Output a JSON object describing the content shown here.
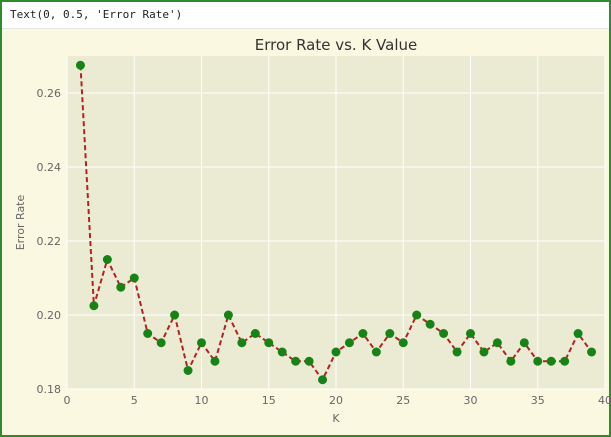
{
  "output_text": "Text(0, 0.5, 'Error Rate')",
  "colors": {
    "plot_background": "#ebebd3",
    "line": "#b22222",
    "marker": "#178317",
    "grid": "#ffffff"
  },
  "chart_data": {
    "type": "line",
    "title": "Error Rate vs. K Value",
    "xlabel": "K",
    "ylabel": "Error Rate",
    "xlim": [
      0,
      40
    ],
    "ylim": [
      0.18,
      0.27
    ],
    "x_ticks": [
      "0",
      "5",
      "10",
      "15",
      "20",
      "25",
      "30",
      "35",
      "40"
    ],
    "y_ticks": [
      "0.18",
      "0.20",
      "0.22",
      "0.24",
      "0.26"
    ],
    "grid": true,
    "line_style": "dashed",
    "marker": "circle",
    "x": [
      1,
      2,
      3,
      4,
      5,
      6,
      7,
      8,
      9,
      10,
      11,
      12,
      13,
      14,
      15,
      16,
      17,
      18,
      19,
      20,
      21,
      22,
      23,
      24,
      25,
      26,
      27,
      28,
      29,
      30,
      31,
      32,
      33,
      34,
      35,
      36,
      37,
      38,
      39
    ],
    "values": [
      0.2675,
      0.2025,
      0.215,
      0.2075,
      0.21,
      0.195,
      0.1925,
      0.2,
      0.185,
      0.1925,
      0.1875,
      0.2,
      0.1925,
      0.195,
      0.1925,
      0.19,
      0.1875,
      0.1875,
      0.1825,
      0.19,
      0.1925,
      0.195,
      0.19,
      0.195,
      0.1925,
      0.2,
      0.1975,
      0.195,
      0.19,
      0.195,
      0.19,
      0.1925,
      0.1875,
      0.1925,
      0.1875,
      0.1875,
      0.1875,
      0.195,
      0.19
    ]
  }
}
